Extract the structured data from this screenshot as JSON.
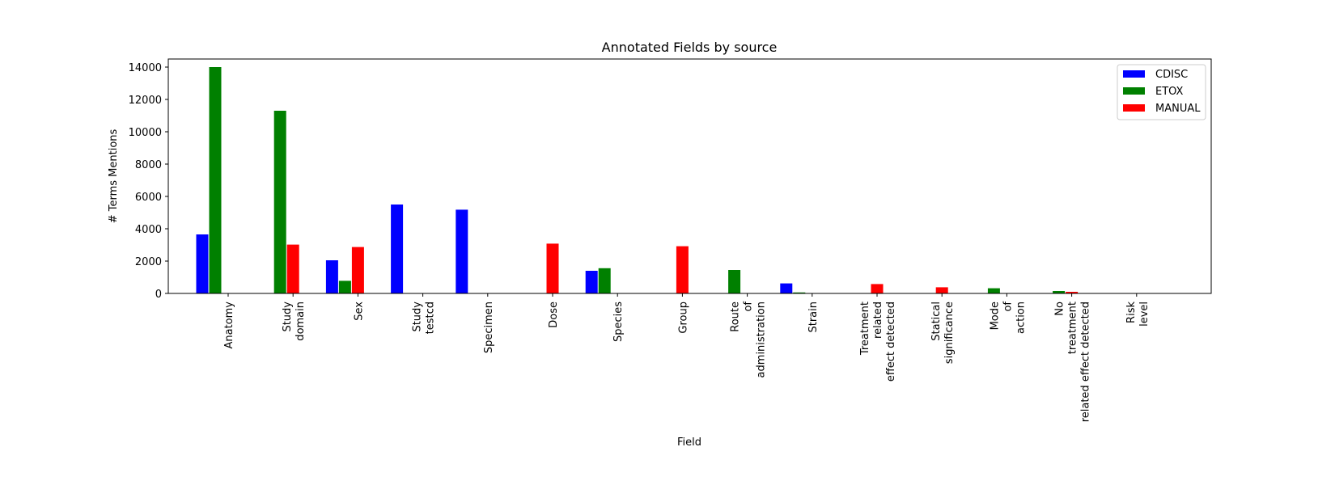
{
  "chart_data": {
    "type": "bar",
    "title": "Annotated Fields by source",
    "xlabel": "Field",
    "ylabel": "# Terms Mentions",
    "ylim": [
      0,
      14500
    ],
    "yticks": [
      0,
      2000,
      4000,
      6000,
      8000,
      10000,
      12000,
      14000
    ],
    "grid": false,
    "legend_position": "top-right",
    "categories": [
      "Anatomy",
      "Study\ndomain",
      "Sex",
      "Study\ntestcd",
      "Specimen",
      "Dose",
      "Species",
      "Group",
      "Route\nof\nadministration",
      "Strain",
      "Treatment\nrelated\neffect detected",
      "Statical\nsignificance",
      "Mode\nof\naction",
      "No\ntreatment\nrelated effect detected",
      "Risk\nlevel"
    ],
    "series": [
      {
        "name": "CDISC",
        "color": "#0000ff",
        "values": [
          3650,
          0,
          2050,
          5500,
          5180,
          0,
          1400,
          0,
          0,
          620,
          0,
          0,
          0,
          0,
          0
        ]
      },
      {
        "name": "ETOX",
        "color": "#008000",
        "values": [
          14000,
          11300,
          780,
          0,
          0,
          0,
          1560,
          0,
          1450,
          60,
          0,
          0,
          320,
          150,
          0
        ]
      },
      {
        "name": "MANUAL",
        "color": "#ff0000",
        "values": [
          0,
          3020,
          2870,
          0,
          0,
          3080,
          0,
          2920,
          0,
          0,
          580,
          380,
          0,
          100,
          0
        ]
      }
    ]
  }
}
